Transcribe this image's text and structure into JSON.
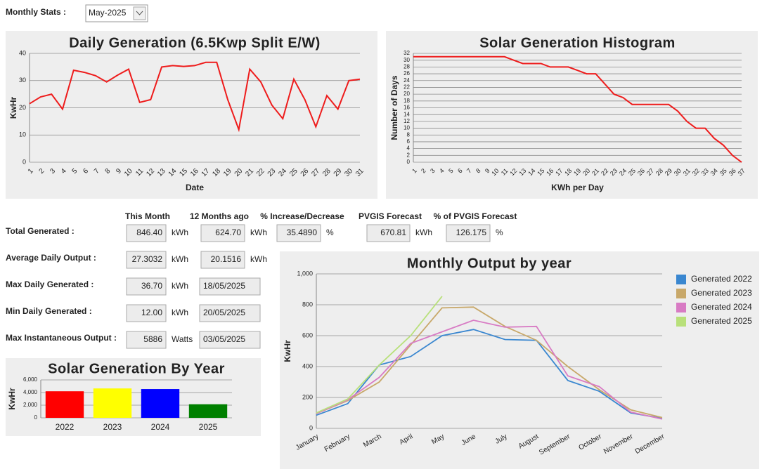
{
  "header": {
    "label": "Monthly Stats :",
    "selected": "May-2025"
  },
  "stats": {
    "columns": [
      "This Month",
      "12 Months ago",
      "% Increase/Decrease",
      "PVGIS Forecast",
      "% of PVGIS Forecast"
    ],
    "rows": [
      {
        "label": "Total Generated :",
        "cells": [
          {
            "value": "846.40",
            "unit": "kWh"
          },
          {
            "value": "624.70",
            "unit": "kWh"
          },
          {
            "value": "35.4890",
            "unit": "%"
          },
          {
            "value": "670.81",
            "unit": "kWh"
          },
          {
            "value": "126.175",
            "unit": "%"
          }
        ]
      },
      {
        "label": "Average Daily Output :",
        "cells": [
          {
            "value": "27.3032",
            "unit": "kWh"
          },
          {
            "value": "20.1516",
            "unit": "kWh"
          }
        ]
      },
      {
        "label": "Max Daily Generated :",
        "cells": [
          {
            "value": "36.70",
            "unit": "kWh"
          },
          {
            "value": "18/05/2025"
          }
        ]
      },
      {
        "label": "Min Daily Generated :",
        "cells": [
          {
            "value": "12.00",
            "unit": "kWh"
          },
          {
            "value": "20/05/2025"
          }
        ]
      },
      {
        "label": "Max Instantaneous Output :",
        "cells": [
          {
            "value": "5886",
            "unit": "Watts"
          },
          {
            "value": "03/05/2025"
          }
        ]
      }
    ]
  },
  "chart_data": [
    {
      "type": "line",
      "title": "Daily Generation (6.5Kwp Split E/W)",
      "x_label": "Date",
      "y_label": "KwHr",
      "color": "#ee1c1c",
      "categories": [
        "1",
        "2",
        "3",
        "4",
        "5",
        "6",
        "7",
        "8",
        "9",
        "10",
        "11",
        "12",
        "13",
        "14",
        "15",
        "16",
        "17",
        "18",
        "19",
        "20",
        "21",
        "22",
        "23",
        "24",
        "25",
        "26",
        "27",
        "28",
        "29",
        "30",
        "31"
      ],
      "values": [
        21.5,
        24,
        25,
        19.5,
        33.8,
        33,
        31.8,
        29.5,
        32,
        34.2,
        22,
        23,
        35,
        35.5,
        35.2,
        35.5,
        36.7,
        36.7,
        23,
        12,
        34.2,
        29.5,
        21,
        16,
        30.5,
        23,
        13,
        24.5,
        19.5,
        30,
        30.5
      ],
      "ylim": [
        0,
        40
      ],
      "yticks": [
        0,
        10,
        20,
        30,
        40
      ],
      "grid": true
    },
    {
      "type": "line",
      "title": "Solar Generation Histogram",
      "x_label": "KWh per Day",
      "y_label": "Number of Days",
      "color": "#ee1c1c",
      "categories": [
        "1",
        "2",
        "3",
        "4",
        "5",
        "6",
        "7",
        "8",
        "9",
        "10",
        "11",
        "12",
        "13",
        "14",
        "15",
        "16",
        "17",
        "18",
        "19",
        "20",
        "21",
        "22",
        "23",
        "24",
        "25",
        "26",
        "27",
        "28",
        "29",
        "30",
        "31",
        "32",
        "33",
        "34",
        "35",
        "36",
        "37"
      ],
      "values": [
        31,
        31,
        31,
        31,
        31,
        31,
        31,
        31,
        31,
        31,
        31,
        30,
        29,
        29,
        29,
        28,
        28,
        28,
        27,
        26,
        26,
        23,
        20,
        19,
        17,
        17,
        17,
        17,
        17,
        15,
        12,
        10,
        10,
        7,
        5,
        2,
        0
      ],
      "ylim": [
        0,
        32
      ],
      "yticks": [
        0,
        2,
        4,
        6,
        8,
        10,
        12,
        14,
        16,
        18,
        20,
        22,
        24,
        26,
        28,
        30,
        32
      ],
      "grid": true
    },
    {
      "type": "bar",
      "title": "Solar Generation By Year",
      "y_label": "KwHr",
      "categories": [
        "2022",
        "2023",
        "2024",
        "2025"
      ],
      "values": [
        4200,
        4650,
        4550,
        2150
      ],
      "colors": [
        "#ff0000",
        "#ffff00",
        "#0000ff",
        "#008000"
      ],
      "ylim": [
        0,
        6000
      ],
      "yticks": [
        0,
        {
          "value": 2000,
          "label": "2,000"
        },
        {
          "value": 4000,
          "label": "4,000"
        },
        {
          "value": 6000,
          "label": "6,000"
        }
      ],
      "grid": true
    },
    {
      "type": "line",
      "title": "Monthly Output by year",
      "y_label": "KwHr",
      "categories": [
        "January",
        "February",
        "March",
        "April",
        "May",
        "June",
        "July",
        "August",
        "September",
        "October",
        "November",
        "December"
      ],
      "series": [
        {
          "name": "Generated 2022",
          "color": "#3a87d0",
          "values": [
            85,
            160,
            410,
            465,
            600,
            640,
            575,
            570,
            310,
            240,
            100,
            65
          ]
        },
        {
          "name": "Generated 2023",
          "color": "#c8a86a",
          "values": [
            95,
            180,
            300,
            540,
            780,
            785,
            660,
            570,
            400,
            250,
            120,
            70
          ]
        },
        {
          "name": "Generated 2024",
          "color": "#d87bc4",
          "values": [
            95,
            185,
            330,
            550,
            625,
            700,
            655,
            660,
            340,
            270,
            105,
            60
          ]
        },
        {
          "name": "Generated 2025",
          "color": "#b8e07a",
          "values": [
            100,
            190,
            410,
            600,
            855,
            null,
            null,
            null,
            null,
            null,
            null,
            null
          ]
        }
      ],
      "ylim": [
        0,
        1000
      ],
      "yticks": [
        0,
        200,
        400,
        600,
        800,
        {
          "value": 1000,
          "label": "1,000"
        }
      ],
      "grid": true,
      "legend": "right"
    }
  ]
}
